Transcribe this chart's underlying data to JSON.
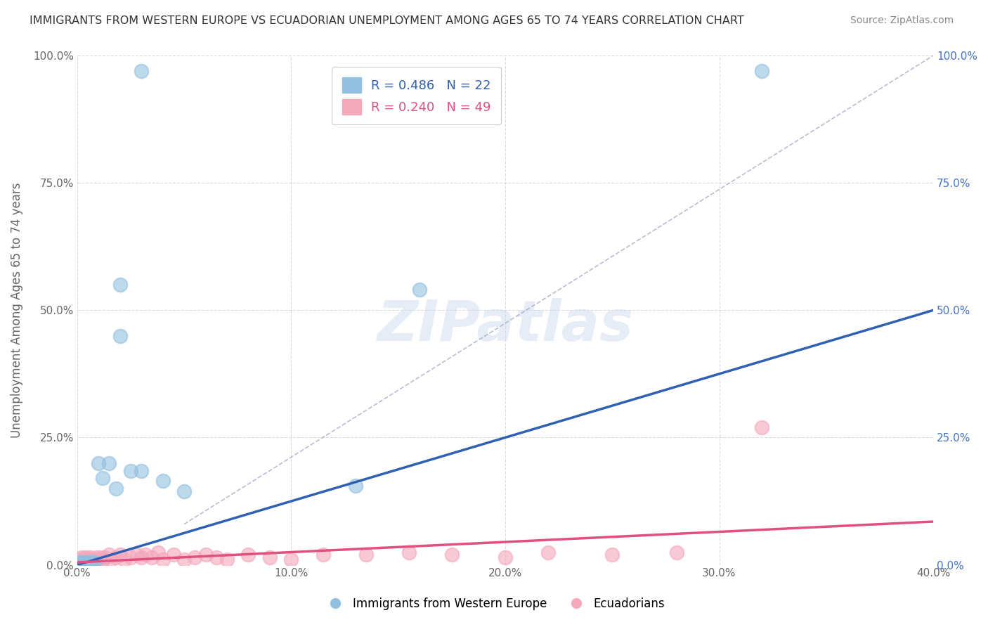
{
  "title": "IMMIGRANTS FROM WESTERN EUROPE VS ECUADORIAN UNEMPLOYMENT AMONG AGES 65 TO 74 YEARS CORRELATION CHART",
  "source": "Source: ZipAtlas.com",
  "xlabel": "",
  "ylabel": "Unemployment Among Ages 65 to 74 years",
  "xlim": [
    0.0,
    0.4
  ],
  "ylim": [
    0.0,
    1.0
  ],
  "xticks": [
    0.0,
    0.1,
    0.2,
    0.3,
    0.4
  ],
  "yticks": [
    0.0,
    0.25,
    0.5,
    0.75,
    1.0
  ],
  "xticklabels": [
    "0.0%",
    "10.0%",
    "20.0%",
    "30.0%",
    "40.0%"
  ],
  "yticklabels": [
    "0.0%",
    "25.0%",
    "50.0%",
    "75.0%",
    "100.0%"
  ],
  "right_yticklabels": [
    "0.0%",
    "25.0%",
    "50.0%",
    "75.0%",
    "100.0%"
  ],
  "legend_blue_label": "Immigrants from Western Europe",
  "legend_pink_label": "Ecuadorians",
  "R_blue": 0.486,
  "N_blue": 22,
  "R_pink": 0.24,
  "N_pink": 49,
  "blue_color": "#92c0e0",
  "pink_color": "#f4a8bc",
  "blue_line_color": "#3060b0",
  "pink_line_color": "#e05080",
  "blue_scatter_x": [
    0.001,
    0.002,
    0.003,
    0.004,
    0.005,
    0.006,
    0.007,
    0.008,
    0.01,
    0.012,
    0.015,
    0.018,
    0.02,
    0.02,
    0.025,
    0.03,
    0.04,
    0.05,
    0.13,
    0.16,
    0.32,
    0.03
  ],
  "blue_scatter_y": [
    0.005,
    0.005,
    0.005,
    0.005,
    0.005,
    0.005,
    0.005,
    0.005,
    0.2,
    0.17,
    0.2,
    0.15,
    0.55,
    0.45,
    0.185,
    0.185,
    0.165,
    0.145,
    0.155,
    0.54,
    0.97,
    0.97
  ],
  "pink_scatter_x": [
    0.001,
    0.001,
    0.002,
    0.002,
    0.003,
    0.003,
    0.004,
    0.004,
    0.005,
    0.005,
    0.006,
    0.006,
    0.007,
    0.008,
    0.009,
    0.01,
    0.011,
    0.012,
    0.013,
    0.015,
    0.016,
    0.018,
    0.02,
    0.022,
    0.025,
    0.028,
    0.03,
    0.032,
    0.035,
    0.038,
    0.04,
    0.045,
    0.05,
    0.055,
    0.06,
    0.065,
    0.07,
    0.08,
    0.09,
    0.1,
    0.115,
    0.135,
    0.155,
    0.175,
    0.2,
    0.22,
    0.25,
    0.28,
    0.32
  ],
  "pink_scatter_y": [
    0.005,
    0.01,
    0.005,
    0.015,
    0.005,
    0.01,
    0.005,
    0.015,
    0.005,
    0.01,
    0.005,
    0.015,
    0.01,
    0.01,
    0.015,
    0.01,
    0.015,
    0.01,
    0.015,
    0.02,
    0.01,
    0.015,
    0.02,
    0.01,
    0.015,
    0.02,
    0.015,
    0.02,
    0.015,
    0.025,
    0.01,
    0.02,
    0.01,
    0.015,
    0.02,
    0.015,
    0.01,
    0.02,
    0.015,
    0.01,
    0.02,
    0.02,
    0.025,
    0.02,
    0.015,
    0.025,
    0.02,
    0.025,
    0.27
  ],
  "blue_line_x0": 0.0,
  "blue_line_y0": 0.0,
  "blue_line_x1": 0.4,
  "blue_line_y1": 0.5,
  "pink_line_x0": 0.0,
  "pink_line_y0": 0.005,
  "pink_line_x1": 0.4,
  "pink_line_y1": 0.085,
  "dash_line_x0": 0.05,
  "dash_line_y0": 0.08,
  "dash_line_x1": 0.4,
  "dash_line_y1": 1.0,
  "watermark": "ZIPatlas",
  "background_color": "#ffffff",
  "grid_color": "#cccccc"
}
